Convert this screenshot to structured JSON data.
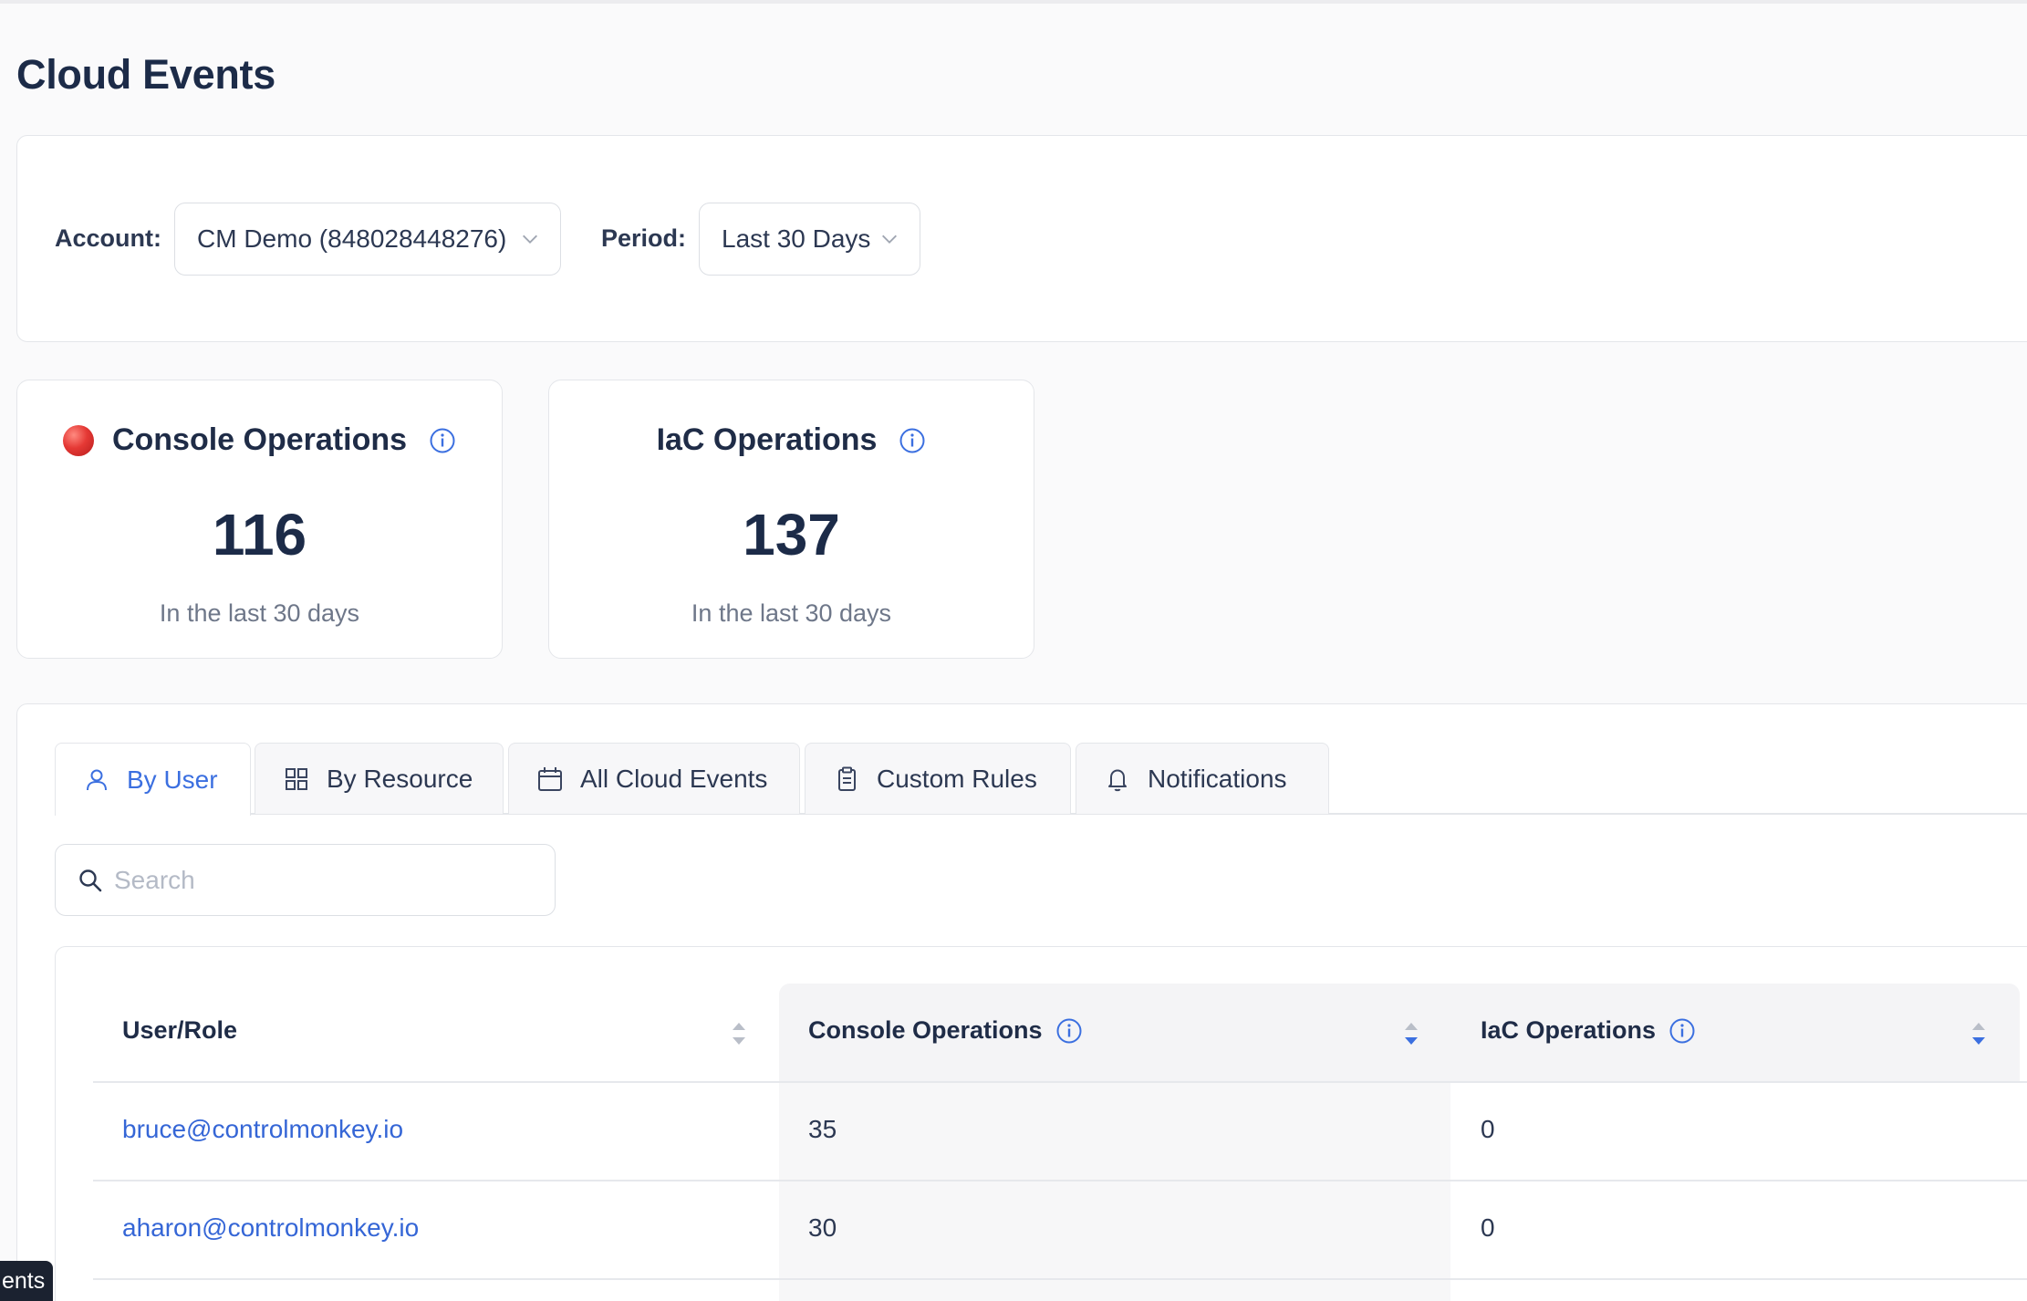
{
  "page": {
    "title": "Cloud Events"
  },
  "filters": {
    "account_label": "Account:",
    "account_value": "CM Demo (848028448276)",
    "period_label": "Period:",
    "period_value": "Last 30 Days"
  },
  "stats": [
    {
      "title": "Console Operations",
      "value": "116",
      "subtitle": "In the last 30 days"
    },
    {
      "title": "IaC Operations",
      "value": "137",
      "subtitle": "In the last 30 days"
    }
  ],
  "tabs": [
    {
      "label": "By User",
      "icon": "user-icon",
      "active": true
    },
    {
      "label": "By Resource",
      "icon": "grid-icon",
      "active": false
    },
    {
      "label": "All Cloud Events",
      "icon": "calendar-icon",
      "active": false
    },
    {
      "label": "Custom Rules",
      "icon": "clipboard-icon",
      "active": false
    },
    {
      "label": "Notifications",
      "icon": "bell-icon",
      "active": false
    }
  ],
  "search": {
    "placeholder": "Search"
  },
  "table": {
    "columns": [
      "User/Role",
      "Console Operations",
      "IaC Operations"
    ],
    "rows": [
      {
        "user": "bruce@controlmonkey.io",
        "console": "35",
        "iac": "0"
      },
      {
        "user": "aharon@controlmonkey.io",
        "console": "30",
        "iac": "0"
      }
    ]
  },
  "footer_tag": {
    "label": "ents"
  },
  "colors": {
    "accent": "#3b6fe0",
    "link": "#3566d6",
    "title": "#1c2b48",
    "alert": "#e53935"
  }
}
